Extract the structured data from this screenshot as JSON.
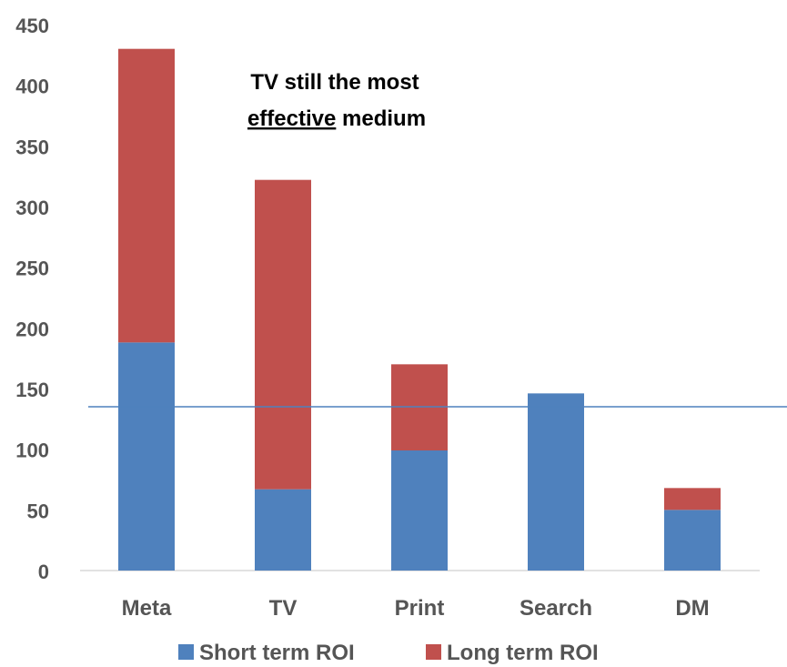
{
  "chart_data": {
    "type": "bar",
    "stacked": true,
    "categories": [
      "Meta",
      "TV",
      "Print",
      "Search",
      "DM"
    ],
    "series": [
      {
        "name": "Short term ROI",
        "values": [
          188,
          67,
          99,
          146,
          50
        ],
        "color": "#4F81BD"
      },
      {
        "name": "Long term ROI",
        "values": [
          242,
          255,
          71,
          0,
          18
        ],
        "color": "#C0504D"
      }
    ],
    "yticks": [
      0,
      50,
      100,
      150,
      200,
      250,
      300,
      350,
      400,
      450
    ],
    "ylim": [
      0,
      450
    ],
    "reference_line": {
      "value": 135,
      "color": "#4F81BD"
    },
    "annotation": {
      "line1": "TV still the most",
      "line2_underlined": "effective",
      "line2_rest": " medium"
    },
    "legend_position": "bottom",
    "title": "",
    "xlabel": "",
    "ylabel": ""
  }
}
